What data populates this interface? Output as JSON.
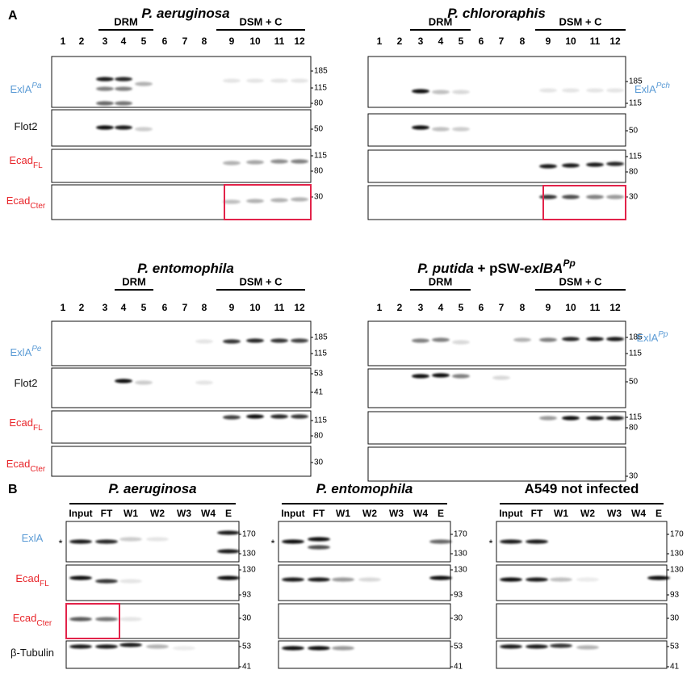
{
  "panel_a": {
    "label": "A",
    "blots": [
      {
        "title": [
          {
            "text": "P. aeruginosa",
            "style": "italic"
          }
        ],
        "groups": [
          "DRM",
          "DSM + C"
        ],
        "lanes": [
          "1",
          "2",
          "3",
          "4",
          "5",
          "6",
          "7",
          "8",
          "9",
          "10",
          "11",
          "12"
        ],
        "rows": [
          {
            "label": {
              "main": "ExlA",
              "sup": "Pa",
              "color": "#5b9bd5",
              "side": "left"
            },
            "markers": [
              "185",
              "115",
              "80"
            ]
          },
          {
            "label": {
              "main": "Flot2",
              "color": "#111111",
              "side": "left"
            },
            "markers": [
              "50"
            ]
          },
          {
            "label": {
              "main": "Ecad",
              "sub": "FL",
              "color": "#e8252a",
              "side": "left"
            },
            "markers": [
              "115",
              "80"
            ]
          },
          {
            "label": {
              "main": "Ecad",
              "sub": "Cter",
              "color": "#e8252a",
              "side": "left"
            },
            "markers": [
              "30"
            ]
          }
        ]
      },
      {
        "title": [
          {
            "text": "P. chlororaphis",
            "style": "italic"
          }
        ],
        "groups": [
          "DRM",
          "DSM + C"
        ],
        "lanes": [
          "1",
          "2",
          "3",
          "4",
          "5",
          "6",
          "7",
          "8",
          "9",
          "10",
          "11",
          "12"
        ],
        "rows": [
          {
            "label": {
              "main": "ExlA",
              "sup": "Pch",
              "color": "#5b9bd5",
              "side": "right"
            },
            "markers": [
              "185",
              "115"
            ]
          },
          {
            "markers": [
              "50"
            ]
          },
          {
            "markers": [
              "115",
              "80"
            ]
          },
          {
            "markers": [
              "30"
            ]
          }
        ]
      },
      {
        "title": [
          {
            "text": "P. entomophila",
            "style": "italic"
          }
        ],
        "groups": [
          "DRM",
          "DSM + C"
        ],
        "lanes": [
          "1",
          "2",
          "3",
          "4",
          "5",
          "6",
          "7",
          "8",
          "9",
          "10",
          "11",
          "12"
        ],
        "rows": [
          {
            "label": {
              "main": "ExlA",
              "sup": "Pe",
              "color": "#5b9bd5",
              "side": "left"
            },
            "markers": [
              "185",
              "115"
            ]
          },
          {
            "label": {
              "main": "Flot2",
              "color": "#111111",
              "side": "left"
            },
            "markers": [
              "53",
              "41"
            ]
          },
          {
            "label": {
              "main": "Ecad",
              "sub": "FL",
              "color": "#e8252a",
              "side": "left"
            },
            "markers": [
              "115",
              "80"
            ]
          },
          {
            "label": {
              "main": "Ecad",
              "sub": "Cter",
              "color": "#e8252a",
              "side": "left"
            },
            "markers": [
              "30"
            ]
          }
        ]
      },
      {
        "title": [
          {
            "text": "P. putida",
            "style": "italic"
          },
          {
            "text": " + pSW-",
            "style": "plain"
          },
          {
            "text": "exlBA",
            "style": "italic"
          },
          {
            "text": "Pp",
            "style": "sup"
          }
        ],
        "groups": [
          "DRM",
          "DSM + C"
        ],
        "lanes": [
          "1",
          "2",
          "3",
          "4",
          "5",
          "6",
          "7",
          "8",
          "9",
          "10",
          "11",
          "12"
        ],
        "rows": [
          {
            "label": {
              "main": "ExlA",
              "sup": "Pp",
              "color": "#5b9bd5",
              "side": "right"
            },
            "markers": [
              "185",
              "115"
            ]
          },
          {
            "markers": [
              "50"
            ]
          },
          {
            "markers": [
              "115",
              "80"
            ]
          },
          {
            "markers": [
              "30"
            ]
          }
        ]
      }
    ]
  },
  "panel_b": {
    "label": "B",
    "blots": [
      {
        "title": [
          {
            "text": "P. aeruginosa",
            "style": "italic"
          }
        ],
        "lanes": [
          "Input",
          "FT",
          "W1",
          "W2",
          "W3",
          "W4",
          "E"
        ],
        "rows": [
          {
            "label": {
              "main": "ExlA",
              "color": "#5b9bd5",
              "side": "left"
            },
            "star": "*",
            "markers": [
              "170",
              "130"
            ]
          },
          {
            "label": {
              "main": "Ecad",
              "sub": "FL",
              "color": "#e8252a",
              "side": "left"
            },
            "markers": [
              "130",
              "93"
            ]
          },
          {
            "label": {
              "main": "Ecad",
              "sub": "Cter",
              "color": "#e8252a",
              "side": "left"
            },
            "markers": [
              "30"
            ]
          },
          {
            "label": {
              "main": "β-Tubulin",
              "color": "#111111",
              "side": "left"
            },
            "markers": [
              "53",
              "41"
            ]
          }
        ]
      },
      {
        "title": [
          {
            "text": "P. entomophila",
            "style": "italic"
          }
        ],
        "lanes": [
          "Input",
          "FT",
          "W1",
          "W2",
          "W3",
          "W4",
          "E"
        ],
        "rows": [
          {
            "star": "*",
            "markers": [
              "170",
              "130"
            ]
          },
          {
            "markers": [
              "130",
              "93"
            ]
          },
          {
            "markers": [
              "30"
            ]
          },
          {
            "markers": [
              "53",
              "41"
            ]
          }
        ]
      },
      {
        "title": [
          {
            "text": "A549 not infected",
            "style": "plain"
          }
        ],
        "lanes": [
          "Input",
          "FT",
          "W1",
          "W2",
          "W3",
          "W4",
          "E"
        ],
        "rows": [
          {
            "star": "*",
            "markers": [
              "170",
              "130"
            ]
          },
          {
            "markers": [
              "130",
              "93"
            ]
          },
          {
            "markers": [
              "30"
            ]
          },
          {
            "markers": [
              "53",
              "41"
            ]
          }
        ]
      }
    ]
  }
}
